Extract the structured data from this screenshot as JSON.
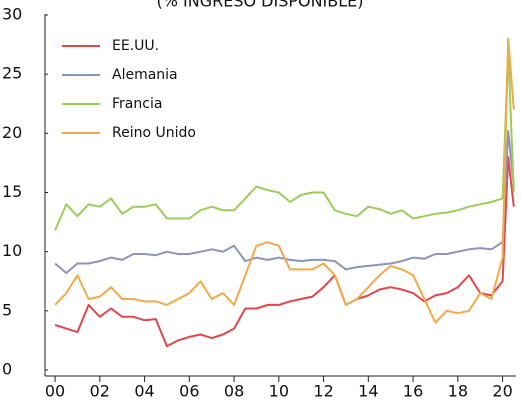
{
  "chart_data": {
    "type": "line",
    "subtitle": "(% INGRESO DISPONIBLE)",
    "x": [
      2000,
      2000.5,
      2001,
      2001.5,
      2002,
      2002.5,
      2003,
      2003.5,
      2004,
      2004.5,
      2005,
      2005.5,
      2006,
      2006.5,
      2007,
      2007.5,
      2008,
      2008.5,
      2009,
      2009.5,
      2010,
      2010.5,
      2011,
      2011.5,
      2012,
      2012.5,
      2013,
      2013.5,
      2014,
      2014.5,
      2015,
      2015.5,
      2016,
      2016.5,
      2017,
      2017.5,
      2018,
      2018.5,
      2019,
      2019.5,
      2020,
      2020.25,
      2020.5
    ],
    "series": [
      {
        "name": "EE.UU.",
        "color": "#e0474c",
        "values": [
          3.8,
          3.5,
          3.2,
          5.5,
          4.5,
          5.2,
          4.5,
          4.5,
          4.2,
          4.3,
          2,
          2.5,
          2.8,
          3,
          2.7,
          3,
          3.5,
          5.2,
          5.2,
          5.5,
          5.5,
          5.8,
          6,
          6.2,
          7,
          8,
          5.5,
          6,
          6.3,
          6.8,
          7,
          6.8,
          6.5,
          5.8,
          6.3,
          6.5,
          7,
          8,
          6.5,
          6.3,
          7.5,
          18,
          13.8
        ]
      },
      {
        "name": "Alemania",
        "color": "#8b95b8",
        "values": [
          9,
          8.2,
          9,
          9,
          9.2,
          9.5,
          9.3,
          9.8,
          9.8,
          9.7,
          10,
          9.8,
          9.8,
          10,
          10.2,
          10,
          10.5,
          9.2,
          9.5,
          9.3,
          9.5,
          9.3,
          9.2,
          9.3,
          9.3,
          9.2,
          8.5,
          8.7,
          8.8,
          8.9,
          9,
          9.2,
          9.5,
          9.4,
          9.8,
          9.8,
          10,
          10.2,
          10.3,
          10.2,
          10.8,
          20.2,
          15.5
        ]
      },
      {
        "name": "Francia",
        "color": "#9ccc5a",
        "values": [
          11.8,
          14,
          13,
          14,
          13.8,
          14.5,
          13.2,
          13.8,
          13.8,
          14,
          12.8,
          12.8,
          12.8,
          13.5,
          13.8,
          13.5,
          13.5,
          14.5,
          15.5,
          15.2,
          15,
          14.2,
          14.8,
          15,
          15,
          13.5,
          13.2,
          13,
          13.8,
          13.6,
          13.2,
          13.5,
          12.8,
          13,
          13.2,
          13.3,
          13.5,
          13.8,
          14,
          14.2,
          14.5,
          27,
          15
        ]
      },
      {
        "name": "Reino Unido",
        "color": "#f2a94a",
        "values": [
          5.5,
          6.5,
          8,
          6,
          6.2,
          7,
          6,
          6,
          5.8,
          5.8,
          5.5,
          6,
          6.5,
          7.5,
          6,
          6.5,
          5.5,
          8,
          10.5,
          10.8,
          10.5,
          8.5,
          8.5,
          8.5,
          9,
          8,
          5.5,
          6,
          7,
          8,
          8.8,
          8.5,
          8,
          6,
          4,
          5,
          4.8,
          5,
          6.5,
          6,
          9.5,
          28,
          22
        ]
      }
    ],
    "xlim": [
      1999.55,
      2020.6
    ],
    "xticks": [
      {
        "value": 2000,
        "label": "00"
      },
      {
        "value": 2002,
        "label": "02"
      },
      {
        "value": 2004,
        "label": "04"
      },
      {
        "value": 2006,
        "label": "06"
      },
      {
        "value": 2008,
        "label": "08"
      },
      {
        "value": 2010,
        "label": "10"
      },
      {
        "value": 2012,
        "label": "12"
      },
      {
        "value": 2014,
        "label": "14"
      },
      {
        "value": 2016,
        "label": "16"
      },
      {
        "value": 2018,
        "label": "18"
      },
      {
        "value": 2020,
        "label": "20"
      }
    ],
    "ylim": [
      0,
      30
    ],
    "yticks": [
      0,
      5,
      10,
      15,
      20,
      25,
      30
    ],
    "grid": false,
    "legend": "upper-left"
  }
}
